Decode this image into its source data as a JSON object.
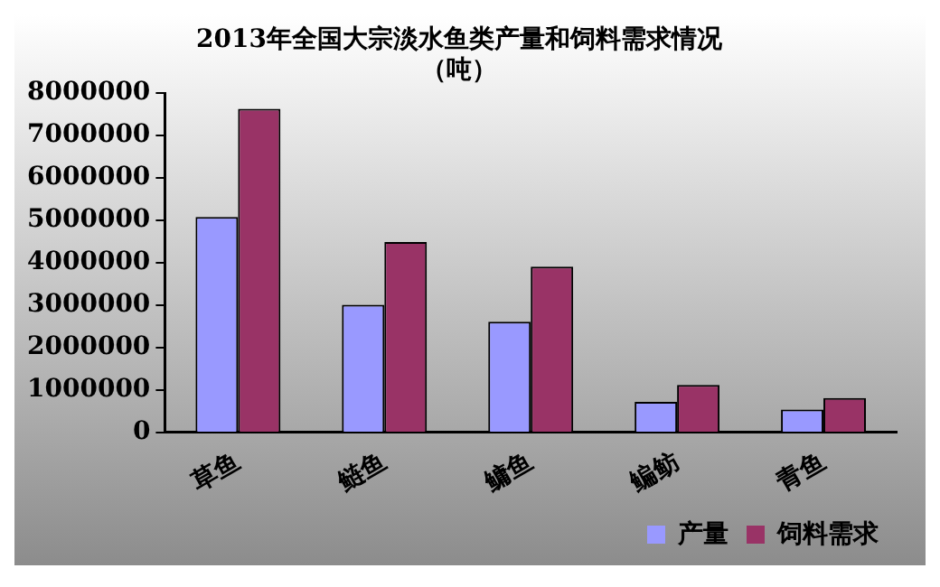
{
  "chart_data": {
    "type": "bar",
    "title": "2013年全国大宗淡水鱼类产量和饲料需求情况",
    "subtitle": "（吨）",
    "categories": [
      "草鱼",
      "鲢鱼",
      "鳙鱼",
      "鳊鲂",
      "青鱼"
    ],
    "series": [
      {
        "name": "产量",
        "color": "#9999ff",
        "values": [
          5080000,
          3010000,
          2610000,
          720000,
          540000
        ]
      },
      {
        "name": "饲料需求",
        "color": "#993366",
        "values": [
          7630000,
          4490000,
          3910000,
          1120000,
          810000
        ]
      }
    ],
    "ylim": [
      0,
      8000000
    ],
    "yticks": [
      0,
      1000000,
      2000000,
      3000000,
      4000000,
      5000000,
      6000000,
      7000000,
      8000000
    ],
    "grid": false,
    "legend": "bottom"
  }
}
